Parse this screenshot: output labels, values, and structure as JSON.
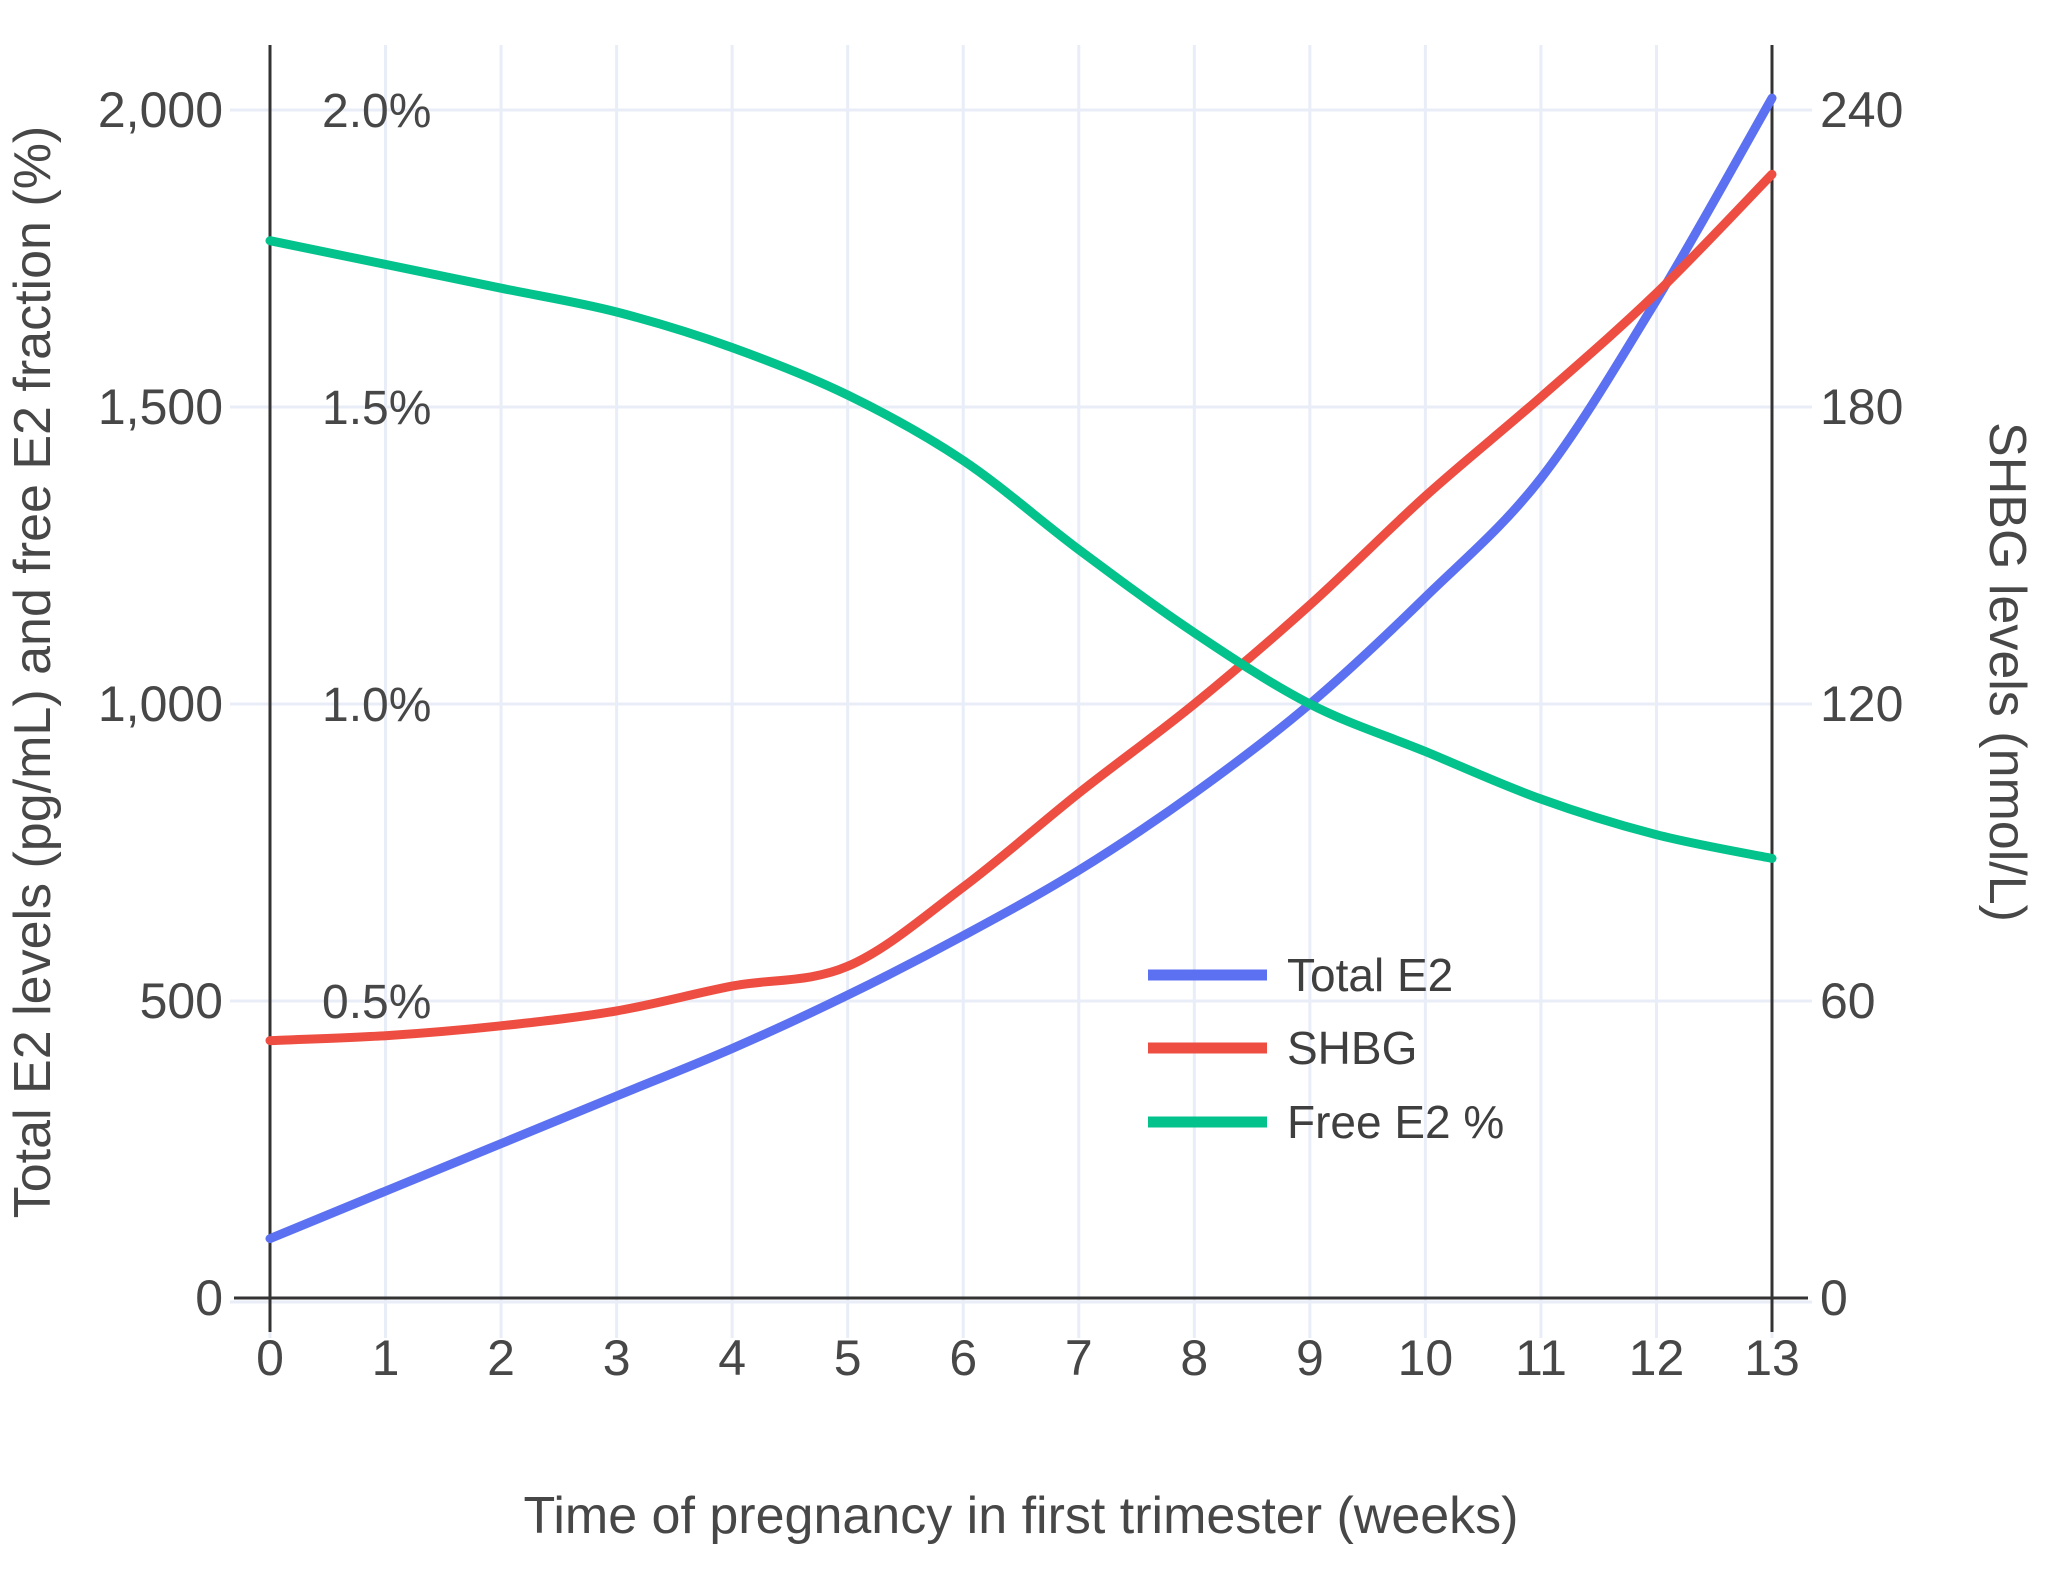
{
  "figure": {
    "x_axis_title": "Time of pregnancy in first trimester (weeks)",
    "left_axis_title": "Total E2 levels (pg/mL) and free E2 fraction (%)",
    "right_axis_title": "SHBG levels (nmol/L)"
  },
  "chart_data": {
    "type": "line",
    "title": "",
    "xlabel": "Time of pregnancy in first trimester (weeks)",
    "ylabel_left": "Total E2 levels (pg/mL) and free E2 fraction (%)",
    "ylabel_right": "SHBG levels (nmol/L)",
    "x": [
      0,
      1,
      2,
      3,
      4,
      5,
      6,
      7,
      8,
      9,
      10,
      11,
      12,
      13
    ],
    "x_tick_labels": [
      "0",
      "1",
      "2",
      "3",
      "4",
      "5",
      "6",
      "7",
      "8",
      "9",
      "10",
      "11",
      "12",
      "13"
    ],
    "left_axis": {
      "tick_labels": [
        "0",
        "500",
        "1,000",
        "1,500",
        "2,000"
      ],
      "tick_values": [
        0,
        500,
        1000,
        1500,
        2000
      ],
      "range": [
        0,
        2110
      ]
    },
    "left_pct_labels": {
      "labels": [
        "0.5%",
        "1.0%",
        "1.5%",
        "2.0%"
      ],
      "values": [
        500,
        1000,
        1500,
        2000
      ]
    },
    "right_axis": {
      "tick_labels": [
        "0",
        "60",
        "120",
        "180",
        "240"
      ],
      "tick_values": [
        0,
        60,
        120,
        180,
        240
      ],
      "range": [
        0,
        253
      ]
    },
    "grid": true,
    "legend_position": "inside-right",
    "series": [
      {
        "name": "Total E2",
        "axis": "left",
        "units": "pg/mL",
        "color": "#5c71f2",
        "values": [
          100,
          180,
          260,
          340,
          420,
          510,
          610,
          720,
          850,
          1000,
          1180,
          1380,
          1680,
          2020
        ]
      },
      {
        "name": "SHBG",
        "axis": "right",
        "units": "nmol/L",
        "color": "#ee4e41",
        "values": [
          52,
          53,
          55,
          58,
          63,
          67,
          83,
          102,
          120,
          140,
          162,
          182,
          203,
          227
        ]
      },
      {
        "name": "Free E2 %",
        "axis": "left_percent",
        "units": "%",
        "color": "#03c28c",
        "values": [
          1.78,
          1.74,
          1.7,
          1.66,
          1.6,
          1.52,
          1.41,
          1.26,
          1.12,
          1.0,
          0.92,
          0.84,
          0.78,
          0.74
        ]
      }
    ]
  },
  "colors": {
    "background": "#ffffff",
    "axis_line": "#333333",
    "grid_line": "#e8edf7",
    "text": "#474747",
    "total_e2": "#5c71f2",
    "shbg": "#ee4e41",
    "free_e2": "#03c28c"
  }
}
